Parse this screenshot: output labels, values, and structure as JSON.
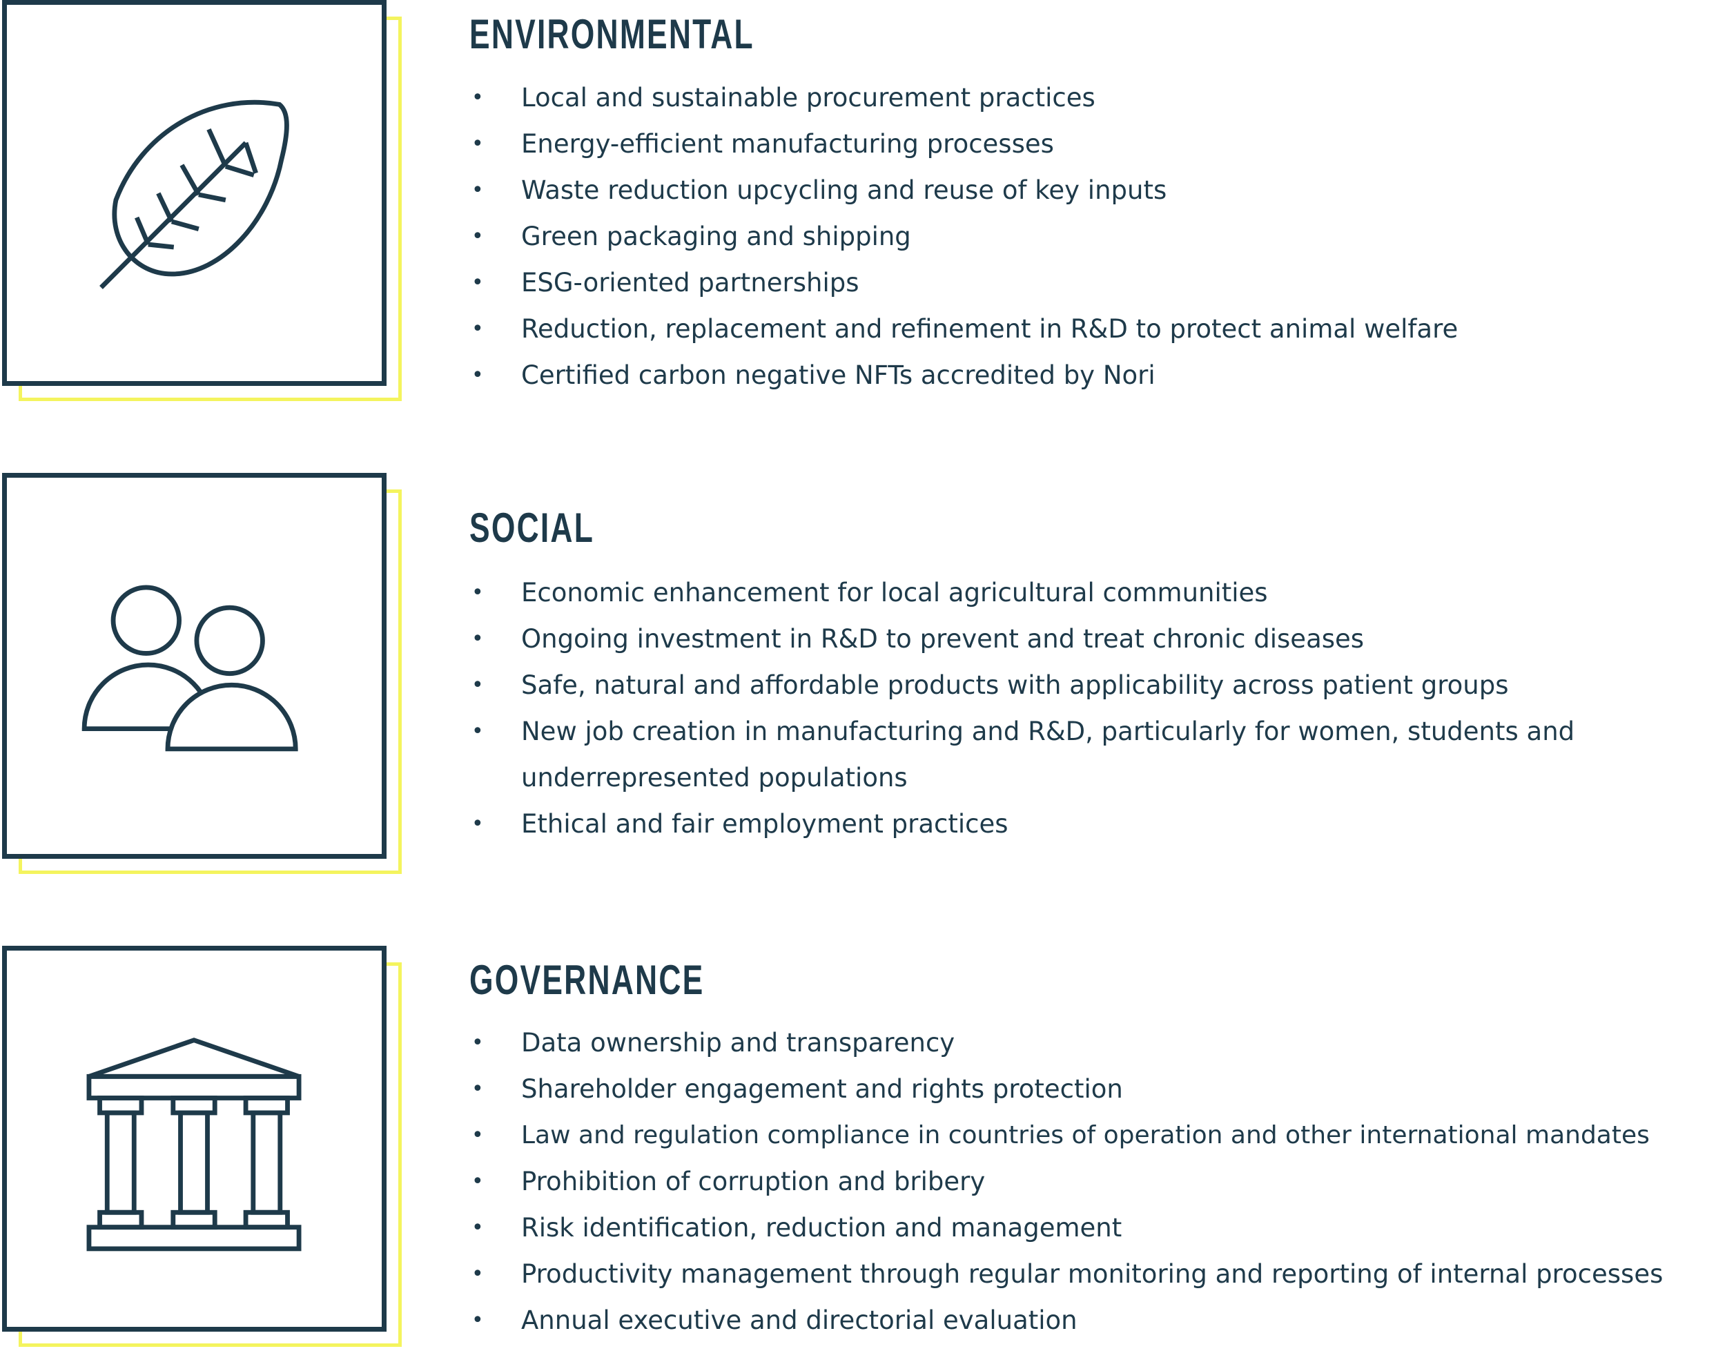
{
  "sections": [
    {
      "title": "ENVIRONMENTAL",
      "icon": "leaf-icon",
      "items": [
        "Local and sustainable procurement practices",
        "Energy-efficient manufacturing processes",
        "Waste reduction upcycling and reuse of key inputs",
        "Green packaging and shipping",
        "ESG-oriented partnerships",
        "Reduction, replacement and refinement in R&D to protect animal welfare",
        "Certified carbon negative NFTs accredited by Nori"
      ]
    },
    {
      "title": "SOCIAL",
      "icon": "people-icon",
      "items": [
        "Economic enhancement for local agricultural communities",
        "Ongoing investment in R&D to prevent and treat chronic diseases",
        "Safe, natural and affordable products with applicability across patient groups",
        "New job creation in manufacturing and R&D, particularly for women, students and underrepresented populations",
        "Ethical and fair employment practices"
      ]
    },
    {
      "title": "GOVERNANCE",
      "icon": "building-columns-icon",
      "items": [
        "Data ownership and transparency",
        "Shareholder engagement and rights protection",
        "Law and regulation compliance in countries of operation and other international mandates",
        "Prohibition of corruption and bribery",
        "Risk identification, reduction and management",
        "Productivity management through regular monitoring and reporting of internal processes",
        "Annual executive and directorial evaluation"
      ]
    }
  ],
  "colors": {
    "navy": "#1e3a4a",
    "accent_yellow": "#f4f45e",
    "background": "#ffffff"
  }
}
